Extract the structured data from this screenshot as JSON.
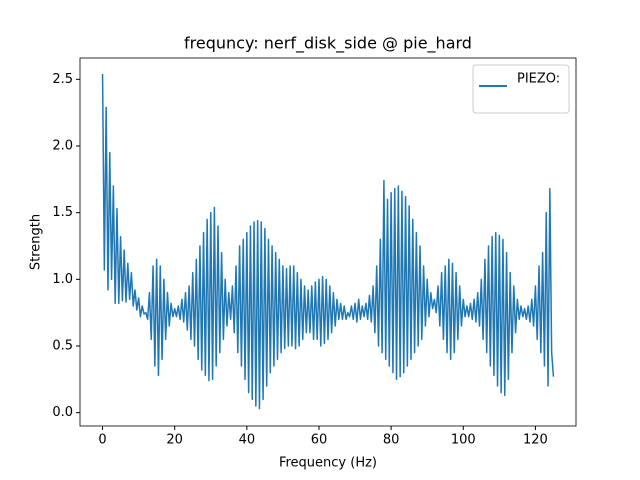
{
  "chart_data": {
    "type": "line",
    "title": "frequncy: nerf_disk_side @ pie_hard",
    "x_label": "Frequency (Hz)",
    "y_label": "Strength",
    "x": [
      0,
      0.5,
      1,
      1.5,
      2,
      2.5,
      3,
      3.5,
      4,
      4.5,
      5,
      5.5,
      6,
      6.5,
      7,
      7.5,
      8,
      8.5,
      9,
      9.5,
      10,
      10.5,
      11,
      11.5,
      12,
      12.5,
      13,
      13.5,
      14,
      14.5,
      15,
      15.5,
      16,
      16.5,
      17,
      17.5,
      18,
      18.5,
      19,
      19.5,
      20,
      20.5,
      21,
      21.5,
      22,
      22.5,
      23,
      23.5,
      24,
      24.5,
      25,
      25.5,
      26,
      26.5,
      27,
      27.5,
      28,
      28.5,
      29,
      29.5,
      30,
      30.5,
      31,
      31.5,
      32,
      32.5,
      33,
      33.5,
      34,
      34.5,
      35,
      35.5,
      36,
      36.5,
      37,
      37.5,
      38,
      38.5,
      39,
      39.5,
      40,
      40.5,
      41,
      41.5,
      42,
      42.5,
      43,
      43.5,
      44,
      44.5,
      45,
      45.5,
      46,
      46.5,
      47,
      47.5,
      48,
      48.5,
      49,
      49.5,
      50,
      50.5,
      51,
      51.5,
      52,
      52.5,
      53,
      53.5,
      54,
      54.5,
      55,
      55.5,
      56,
      56.5,
      57,
      57.5,
      58,
      58.5,
      59,
      59.5,
      60,
      60.5,
      61,
      61.5,
      62,
      62.5,
      63,
      63.5,
      64,
      64.5,
      65,
      65.5,
      66,
      66.5,
      67,
      67.5,
      68,
      68.5,
      69,
      69.5,
      70,
      70.5,
      71,
      71.5,
      72,
      72.5,
      73,
      73.5,
      74,
      74.5,
      75,
      75.5,
      76,
      76.5,
      77,
      77.5,
      78,
      78.5,
      79,
      79.5,
      80,
      80.5,
      81,
      81.5,
      82,
      82.5,
      83,
      83.5,
      84,
      84.5,
      85,
      85.5,
      86,
      86.5,
      87,
      87.5,
      88,
      88.5,
      89,
      89.5,
      90,
      90.5,
      91,
      91.5,
      92,
      92.5,
      93,
      93.5,
      94,
      94.5,
      95,
      95.5,
      96,
      96.5,
      97,
      97.5,
      98,
      98.5,
      99,
      99.5,
      100,
      100.5,
      101,
      101.5,
      102,
      102.5,
      103,
      103.5,
      104,
      104.5,
      105,
      105.5,
      106,
      106.5,
      107,
      107.5,
      108,
      108.5,
      109,
      109.5,
      110,
      110.5,
      111,
      111.5,
      112,
      112.5,
      113,
      113.5,
      114,
      114.5,
      115,
      115.5,
      116,
      116.5,
      117,
      117.5,
      118,
      118.5,
      119,
      119.5,
      120,
      120.5,
      121,
      121.5,
      122,
      122.5,
      123,
      123.5,
      124,
      124.5,
      125
    ],
    "series": [
      {
        "name": "PIEZO:",
        "color": "#1f77b4",
        "values": [
          2.54,
          1.07,
          2.29,
          0.92,
          1.95,
          1.0,
          1.7,
          0.82,
          1.53,
          0.82,
          1.32,
          0.84,
          1.22,
          0.83,
          1.12,
          0.85,
          1.05,
          0.8,
          0.92,
          0.77,
          0.86,
          0.72,
          0.8,
          0.74,
          0.75,
          0.7,
          0.9,
          0.55,
          1.1,
          0.35,
          1.15,
          0.28,
          1.1,
          0.4,
          1.0,
          0.55,
          0.9,
          0.65,
          0.82,
          0.72,
          0.78,
          0.72,
          0.8,
          0.7,
          0.85,
          0.68,
          0.9,
          0.62,
          0.95,
          0.55,
          1.05,
          0.5,
          1.15,
          0.4,
          1.25,
          0.32,
          1.35,
          0.28,
          1.45,
          0.24,
          1.5,
          0.25,
          1.54,
          0.35,
          1.4,
          0.45,
          1.2,
          0.55,
          1.0,
          0.65,
          0.9,
          0.7,
          0.95,
          0.6,
          1.1,
          0.45,
          1.25,
          0.35,
          1.3,
          0.25,
          1.35,
          0.15,
          1.4,
          0.1,
          1.43,
          0.05,
          1.44,
          0.03,
          1.43,
          0.1,
          1.38,
          0.2,
          1.3,
          0.3,
          1.25,
          0.35,
          1.2,
          0.4,
          1.15,
          0.45,
          1.1,
          0.48,
          1.08,
          0.5,
          1.1,
          0.5,
          1.1,
          0.48,
          1.05,
          0.5,
          1.0,
          0.55,
          0.95,
          0.6,
          0.92,
          0.6,
          0.95,
          0.55,
          0.98,
          0.55,
          1.0,
          0.5,
          1.02,
          0.52,
          1.0,
          0.55,
          0.95,
          0.6,
          0.9,
          0.65,
          0.85,
          0.7,
          0.82,
          0.7,
          0.8,
          0.7,
          0.75,
          0.72,
          0.8,
          0.7,
          0.82,
          0.68,
          0.85,
          0.7,
          0.8,
          0.72,
          0.82,
          0.7,
          0.88,
          0.68,
          0.95,
          0.6,
          1.1,
          0.5,
          1.3,
          0.45,
          1.74,
          0.4,
          1.6,
          0.35,
          1.65,
          0.3,
          1.68,
          0.25,
          1.7,
          0.27,
          1.66,
          0.3,
          1.62,
          0.35,
          1.55,
          0.4,
          1.45,
          0.45,
          1.35,
          0.5,
          1.25,
          0.55,
          1.1,
          0.65,
          1.0,
          0.72,
          0.9,
          0.78,
          0.85,
          0.75,
          0.95,
          0.65,
          1.05,
          0.55,
          1.1,
          0.45,
          1.15,
          0.4,
          1.12,
          0.45,
          1.05,
          0.55,
          0.95,
          0.65,
          0.85,
          0.72,
          0.8,
          0.72,
          0.82,
          0.7,
          0.85,
          0.68,
          0.9,
          0.65,
          1.0,
          0.55,
          1.15,
          0.45,
          1.25,
          0.35,
          1.32,
          0.28,
          1.35,
          0.2,
          1.33,
          0.15,
          1.3,
          0.13,
          1.2,
          0.25,
          1.05,
          0.45,
          0.95,
          0.6,
          0.85,
          0.7,
          0.8,
          0.72,
          0.78,
          0.7,
          0.8,
          0.68,
          0.85,
          0.65,
          0.95,
          0.55,
          1.1,
          0.45,
          1.2,
          0.35,
          1.5,
          0.2,
          1.68,
          0.45,
          0.27
        ]
      }
    ],
    "xlim": [
      -6.25,
      131.25
    ],
    "ylim": [
      -0.1,
      2.66
    ],
    "xticks": [
      0,
      20,
      40,
      60,
      80,
      100,
      120
    ],
    "yticks": [
      {
        "value": 0,
        "label": "0.0"
      },
      0.5,
      {
        "value": 1,
        "label": "1.0"
      },
      1.5,
      {
        "value": 2,
        "label": "2.0"
      },
      2.5
    ],
    "legend": "upper right"
  }
}
